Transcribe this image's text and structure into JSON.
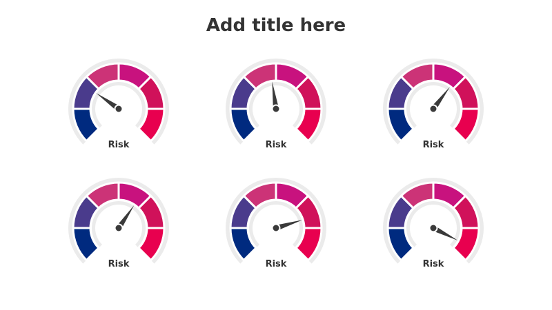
{
  "title": "Add title here",
  "colors": {
    "track": "#ebebeb",
    "needle": "#3a3a3a",
    "segments": [
      "#002a7f",
      "#4a3b8c",
      "#cc3377",
      "#c8127e",
      "#d0115a",
      "#e8004f"
    ]
  },
  "gauges": [
    {
      "label": "Risk",
      "needle_deg": -55
    },
    {
      "label": "Risk",
      "needle_deg": -8
    },
    {
      "label": "Risk",
      "needle_deg": 37
    },
    {
      "label": "Risk",
      "needle_deg": 34
    },
    {
      "label": "Risk",
      "needle_deg": 73
    },
    {
      "label": "Risk",
      "needle_deg": 117
    }
  ]
}
